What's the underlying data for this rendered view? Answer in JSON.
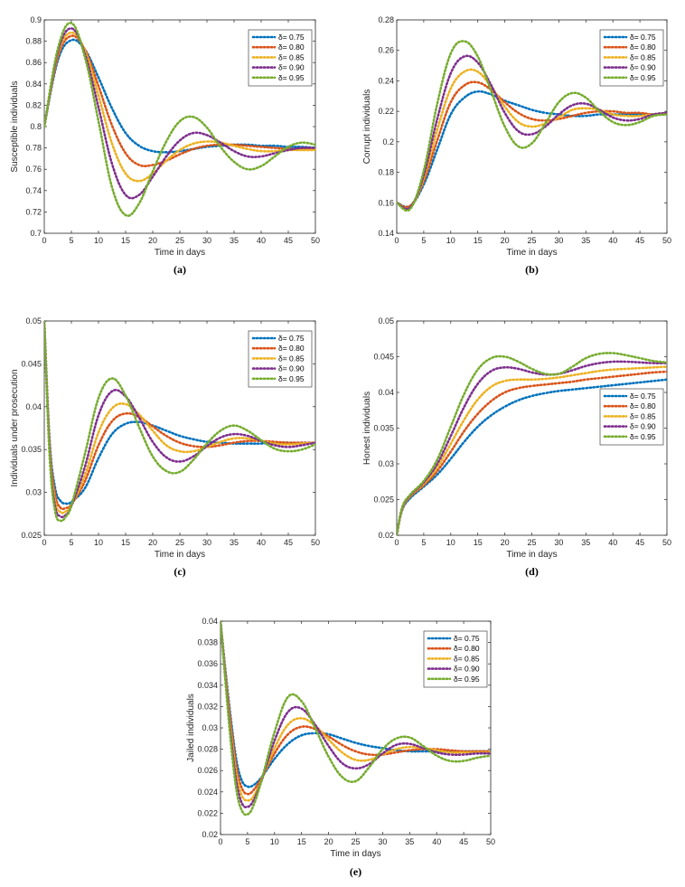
{
  "colors": {
    "s1": "#0072BD",
    "s2": "#D95319",
    "s3": "#EDB120",
    "s4": "#7E2F8E",
    "s5": "#77AC30"
  },
  "chart_data": [
    {
      "id": "a",
      "type": "line",
      "panel_label": "(a)",
      "xlabel": "Time in days",
      "ylabel": "Susceptible individuals",
      "xlim": [
        0,
        50
      ],
      "ylim": [
        0.7,
        0.9
      ],
      "xticks": [
        "0",
        "5",
        "10",
        "15",
        "20",
        "25",
        "30",
        "35",
        "40",
        "45",
        "50"
      ],
      "yticks": [
        "0.7",
        "0.72",
        "0.74",
        "0.76",
        "0.78",
        "0.8",
        "0.82",
        "0.84",
        "0.86",
        "0.88",
        "0.9"
      ],
      "legend_position": "top-right",
      "x": [
        0,
        2.5,
        5,
        7.5,
        10,
        12.5,
        15,
        17.5,
        20,
        22.5,
        25,
        27.5,
        30,
        32.5,
        35,
        37.5,
        40,
        42.5,
        45,
        47.5,
        50
      ],
      "series": [
        {
          "name": "δ= 0.75",
          "values": [
            0.8,
            0.862,
            0.881,
            0.872,
            0.846,
            0.817,
            0.794,
            0.782,
            0.777,
            0.776,
            0.777,
            0.779,
            0.781,
            0.782,
            0.783,
            0.783,
            0.782,
            0.782,
            0.781,
            0.781,
            0.78
          ]
        },
        {
          "name": "δ= 0.80",
          "values": [
            0.8,
            0.865,
            0.885,
            0.872,
            0.838,
            0.801,
            0.775,
            0.764,
            0.764,
            0.768,
            0.774,
            0.779,
            0.782,
            0.783,
            0.783,
            0.782,
            0.781,
            0.78,
            0.779,
            0.779,
            0.779
          ]
        },
        {
          "name": "δ= 0.85",
          "values": [
            0.8,
            0.868,
            0.888,
            0.871,
            0.829,
            0.784,
            0.756,
            0.749,
            0.756,
            0.768,
            0.778,
            0.784,
            0.786,
            0.785,
            0.782,
            0.779,
            0.777,
            0.777,
            0.778,
            0.778,
            0.778
          ]
        },
        {
          "name": "δ= 0.90",
          "values": [
            0.8,
            0.87,
            0.892,
            0.868,
            0.818,
            0.765,
            0.736,
            0.736,
            0.753,
            0.772,
            0.787,
            0.794,
            0.792,
            0.785,
            0.777,
            0.772,
            0.772,
            0.775,
            0.778,
            0.78,
            0.78
          ]
        },
        {
          "name": "δ= 0.95",
          "values": [
            0.8,
            0.873,
            0.897,
            0.865,
            0.805,
            0.743,
            0.717,
            0.728,
            0.758,
            0.786,
            0.805,
            0.809,
            0.799,
            0.781,
            0.767,
            0.76,
            0.763,
            0.772,
            0.781,
            0.785,
            0.783
          ]
        }
      ]
    },
    {
      "id": "b",
      "type": "line",
      "panel_label": "(b)",
      "xlabel": "Time in days",
      "ylabel": "Corrupt individuals",
      "xlim": [
        0,
        50
      ],
      "ylim": [
        0.14,
        0.28
      ],
      "xticks": [
        "0",
        "5",
        "10",
        "15",
        "20",
        "25",
        "30",
        "35",
        "40",
        "45",
        "50"
      ],
      "yticks": [
        "0.14",
        "0.16",
        "0.18",
        "0.2",
        "0.22",
        "0.24",
        "0.26",
        "0.28"
      ],
      "legend_position": "top-right",
      "x": [
        0,
        2.5,
        5,
        7.5,
        10,
        12.5,
        15,
        17.5,
        20,
        22.5,
        25,
        27.5,
        30,
        32.5,
        35,
        37.5,
        40,
        42.5,
        45,
        47.5,
        50
      ],
      "series": [
        {
          "name": "δ= 0.75",
          "values": [
            0.16,
            0.158,
            0.172,
            0.195,
            0.218,
            0.229,
            0.233,
            0.231,
            0.227,
            0.224,
            0.221,
            0.219,
            0.218,
            0.217,
            0.217,
            0.218,
            0.218,
            0.218,
            0.218,
            0.218,
            0.218
          ]
        },
        {
          "name": "δ= 0.80",
          "values": [
            0.16,
            0.158,
            0.174,
            0.201,
            0.226,
            0.237,
            0.239,
            0.234,
            0.226,
            0.219,
            0.215,
            0.214,
            0.215,
            0.217,
            0.219,
            0.22,
            0.22,
            0.219,
            0.219,
            0.218,
            0.219
          ]
        },
        {
          "name": "δ= 0.85",
          "values": [
            0.16,
            0.157,
            0.176,
            0.208,
            0.235,
            0.246,
            0.246,
            0.236,
            0.223,
            0.213,
            0.21,
            0.212,
            0.216,
            0.221,
            0.222,
            0.221,
            0.218,
            0.217,
            0.217,
            0.218,
            0.218
          ]
        },
        {
          "name": "δ= 0.90",
          "values": [
            0.16,
            0.157,
            0.178,
            0.215,
            0.245,
            0.256,
            0.252,
            0.237,
            0.219,
            0.207,
            0.205,
            0.21,
            0.218,
            0.224,
            0.225,
            0.221,
            0.216,
            0.214,
            0.215,
            0.218,
            0.219
          ]
        },
        {
          "name": "δ= 0.95",
          "values": [
            0.16,
            0.156,
            0.181,
            0.225,
            0.258,
            0.266,
            0.256,
            0.233,
            0.21,
            0.197,
            0.199,
            0.212,
            0.226,
            0.232,
            0.229,
            0.22,
            0.213,
            0.211,
            0.213,
            0.217,
            0.218
          ]
        }
      ]
    },
    {
      "id": "c",
      "type": "line",
      "panel_label": "(c)",
      "xlabel": "Time in days",
      "ylabel": "Individuals under prosecution",
      "xlim": [
        0,
        50
      ],
      "ylim": [
        0.025,
        0.05
      ],
      "xticks": [
        "0",
        "5",
        "10",
        "15",
        "20",
        "25",
        "30",
        "35",
        "40",
        "45",
        "50"
      ],
      "yticks": [
        "0.025",
        "0.03",
        "0.035",
        "0.04",
        "0.045",
        "0.05"
      ],
      "legend_position": "top-right",
      "x": [
        0,
        1,
        2,
        3,
        4,
        5,
        7.5,
        10,
        12.5,
        15,
        17.5,
        20,
        22.5,
        25,
        27.5,
        30,
        32.5,
        35,
        37.5,
        40,
        42.5,
        45,
        47.5,
        50
      ],
      "series": [
        {
          "name": "δ= 0.75",
          "values": [
            0.05,
            0.036,
            0.0305,
            0.029,
            0.0287,
            0.0289,
            0.0305,
            0.034,
            0.0368,
            0.038,
            0.0382,
            0.0378,
            0.0372,
            0.0366,
            0.0362,
            0.0359,
            0.0358,
            0.0357,
            0.0357,
            0.0357,
            0.0358,
            0.0358,
            0.0358,
            0.0358
          ]
        },
        {
          "name": "δ= 0.80",
          "values": [
            0.05,
            0.0355,
            0.0298,
            0.0282,
            0.0282,
            0.0286,
            0.0313,
            0.0355,
            0.0383,
            0.0392,
            0.0388,
            0.0377,
            0.0366,
            0.0358,
            0.0354,
            0.0353,
            0.0355,
            0.0358,
            0.036,
            0.036,
            0.0359,
            0.0358,
            0.0358,
            0.0358
          ]
        },
        {
          "name": "δ= 0.85",
          "values": [
            0.05,
            0.035,
            0.029,
            0.0277,
            0.0278,
            0.0285,
            0.032,
            0.037,
            0.0398,
            0.0403,
            0.0391,
            0.0372,
            0.0355,
            0.0348,
            0.0348,
            0.0353,
            0.0359,
            0.0363,
            0.0363,
            0.036,
            0.0357,
            0.0356,
            0.0357,
            0.0358
          ]
        },
        {
          "name": "δ= 0.90",
          "values": [
            0.05,
            0.0345,
            0.0284,
            0.0272,
            0.0274,
            0.0284,
            0.033,
            0.039,
            0.0418,
            0.0412,
            0.0387,
            0.0359,
            0.0341,
            0.0336,
            0.0342,
            0.0354,
            0.0364,
            0.0368,
            0.0366,
            0.036,
            0.0355,
            0.0353,
            0.0355,
            0.0358
          ]
        },
        {
          "name": "δ= 0.95",
          "values": [
            0.05,
            0.034,
            0.0278,
            0.0267,
            0.0272,
            0.0285,
            0.0345,
            0.041,
            0.0433,
            0.0413,
            0.0376,
            0.0342,
            0.0325,
            0.0324,
            0.0338,
            0.0357,
            0.0372,
            0.0378,
            0.0372,
            0.0361,
            0.0351,
            0.0348,
            0.035,
            0.0356
          ]
        }
      ]
    },
    {
      "id": "d",
      "type": "line",
      "panel_label": "(d)",
      "xlabel": "Time in days",
      "ylabel": "Honest  individuals",
      "xlim": [
        0,
        50
      ],
      "ylim": [
        0.02,
        0.05
      ],
      "xticks": [
        "0",
        "5",
        "10",
        "15",
        "20",
        "25",
        "30",
        "35",
        "40",
        "45",
        "50"
      ],
      "yticks": [
        "0.02",
        "0.025",
        "0.03",
        "0.035",
        "0.04",
        "0.045",
        "0.05"
      ],
      "legend_position": "middle-right",
      "x": [
        0,
        1,
        2.5,
        5,
        7.5,
        10,
        12.5,
        15,
        17.5,
        20,
        22.5,
        25,
        27.5,
        30,
        32.5,
        35,
        37.5,
        40,
        42.5,
        45,
        47.5,
        50
      ],
      "series": [
        {
          "name": "δ= 0.75",
          "values": [
            0.02,
            0.0235,
            0.0252,
            0.0268,
            0.0285,
            0.0307,
            0.0331,
            0.0352,
            0.0368,
            0.038,
            0.0389,
            0.0395,
            0.0399,
            0.0402,
            0.0404,
            0.0406,
            0.0408,
            0.041,
            0.0412,
            0.0414,
            0.0416,
            0.0418
          ]
        },
        {
          "name": "δ= 0.80",
          "values": [
            0.02,
            0.0236,
            0.0254,
            0.027,
            0.029,
            0.0317,
            0.0346,
            0.037,
            0.0388,
            0.04,
            0.0406,
            0.0409,
            0.0411,
            0.0413,
            0.0415,
            0.0418,
            0.042,
            0.0422,
            0.0424,
            0.0426,
            0.0428,
            0.0429
          ]
        },
        {
          "name": "δ= 0.85",
          "values": [
            0.02,
            0.0237,
            0.0255,
            0.0272,
            0.0295,
            0.0328,
            0.0362,
            0.039,
            0.0408,
            0.0416,
            0.0418,
            0.0418,
            0.0419,
            0.0421,
            0.0424,
            0.0427,
            0.043,
            0.0432,
            0.0433,
            0.0434,
            0.0435,
            0.0436
          ]
        },
        {
          "name": "δ= 0.90",
          "values": [
            0.02,
            0.0238,
            0.0256,
            0.0274,
            0.03,
            0.0339,
            0.038,
            0.0412,
            0.043,
            0.0435,
            0.0433,
            0.0428,
            0.0425,
            0.0426,
            0.0431,
            0.0437,
            0.0441,
            0.0443,
            0.0443,
            0.0442,
            0.0441,
            0.0441
          ]
        },
        {
          "name": "δ= 0.95",
          "values": [
            0.02,
            0.0239,
            0.0257,
            0.0276,
            0.0306,
            0.0352,
            0.0398,
            0.0432,
            0.0448,
            0.045,
            0.0443,
            0.0433,
            0.0426,
            0.0426,
            0.0436,
            0.0448,
            0.0454,
            0.0455,
            0.0452,
            0.0448,
            0.0444,
            0.0442
          ]
        }
      ]
    },
    {
      "id": "e",
      "type": "line",
      "panel_label": "(e)",
      "xlabel": "Time in days",
      "ylabel": "Jailed individuals",
      "xlim": [
        0,
        50
      ],
      "ylim": [
        0.02,
        0.04
      ],
      "xticks": [
        "0",
        "5",
        "10",
        "15",
        "20",
        "25",
        "30",
        "35",
        "40",
        "45",
        "50"
      ],
      "yticks": [
        "0.02",
        "0.022",
        "0.024",
        "0.026",
        "0.028",
        "0.03",
        "0.032",
        "0.034",
        "0.036",
        "0.038",
        "0.04"
      ],
      "legend_position": "top-right",
      "x": [
        0,
        1,
        2,
        3,
        4,
        5,
        6,
        7.5,
        10,
        12.5,
        15,
        17.5,
        20,
        22.5,
        25,
        27.5,
        30,
        32.5,
        35,
        37.5,
        40,
        42.5,
        45,
        47.5,
        50
      ],
      "series": [
        {
          "name": "δ= 0.75",
          "values": [
            0.04,
            0.035,
            0.0305,
            0.0268,
            0.025,
            0.0245,
            0.0246,
            0.0253,
            0.0271,
            0.0285,
            0.0293,
            0.0295,
            0.0294,
            0.029,
            0.0286,
            0.0283,
            0.0281,
            0.0279,
            0.0278,
            0.0278,
            0.0278,
            0.0278,
            0.0278,
            0.0278,
            0.0278
          ]
        },
        {
          "name": "δ= 0.80",
          "values": [
            0.04,
            0.0347,
            0.03,
            0.0262,
            0.0243,
            0.0238,
            0.0241,
            0.0252,
            0.0276,
            0.0294,
            0.0301,
            0.0299,
            0.0292,
            0.0284,
            0.0278,
            0.0275,
            0.0275,
            0.0277,
            0.0279,
            0.028,
            0.028,
            0.0279,
            0.0278,
            0.0278,
            0.0278
          ]
        },
        {
          "name": "δ= 0.85",
          "values": [
            0.04,
            0.0344,
            0.0294,
            0.0255,
            0.0236,
            0.0232,
            0.0235,
            0.025,
            0.0281,
            0.0303,
            0.0309,
            0.0302,
            0.0289,
            0.0277,
            0.027,
            0.027,
            0.0275,
            0.028,
            0.0282,
            0.0281,
            0.0279,
            0.0277,
            0.0277,
            0.0277,
            0.0277
          ]
        },
        {
          "name": "δ= 0.90",
          "values": [
            0.04,
            0.0341,
            0.0288,
            0.0248,
            0.0229,
            0.0226,
            0.0231,
            0.0249,
            0.0288,
            0.0315,
            0.0318,
            0.0303,
            0.0283,
            0.0267,
            0.0262,
            0.0266,
            0.0276,
            0.0284,
            0.0285,
            0.0281,
            0.0277,
            0.0275,
            0.0275,
            0.0276,
            0.0276
          ]
        },
        {
          "name": "δ= 0.95",
          "values": [
            0.04,
            0.0338,
            0.0282,
            0.024,
            0.0222,
            0.0219,
            0.0226,
            0.0249,
            0.0296,
            0.0329,
            0.0325,
            0.03,
            0.0273,
            0.0254,
            0.025,
            0.0263,
            0.028,
            0.029,
            0.0291,
            0.0283,
            0.0274,
            0.0269,
            0.0269,
            0.0272,
            0.0274
          ]
        }
      ]
    }
  ]
}
